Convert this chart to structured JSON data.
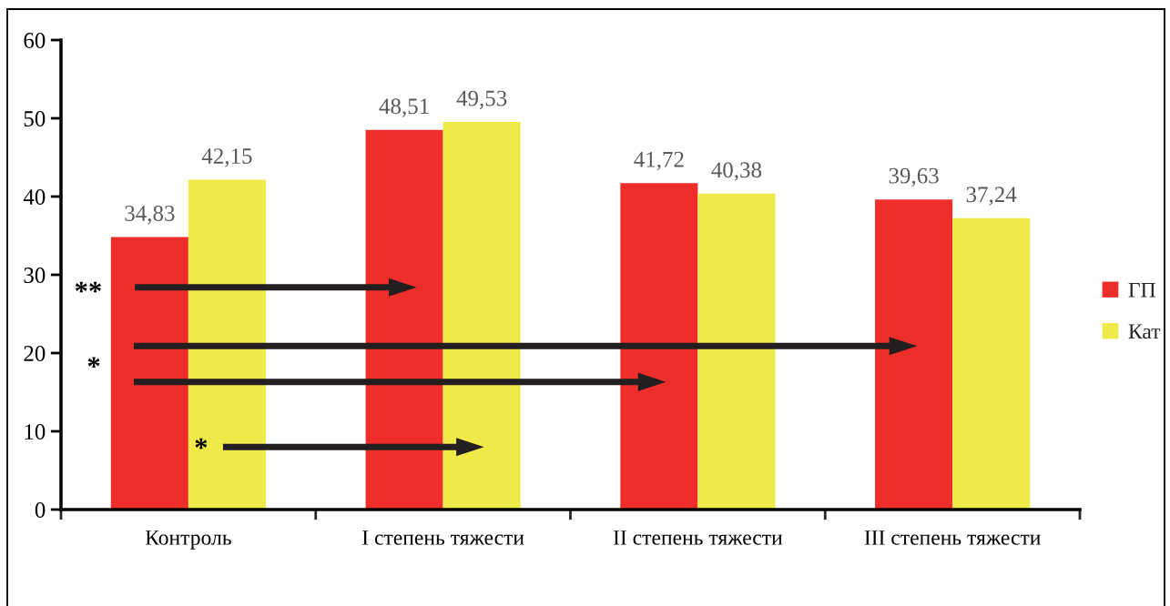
{
  "chart_data": {
    "type": "bar",
    "categories": [
      "Контроль",
      "I степень тяжести",
      "II степень тяжести",
      "III степень тяжести"
    ],
    "series": [
      {
        "name": "ГП",
        "color": "#ee2e2a",
        "values": [
          34.83,
          48.51,
          41.72,
          39.63
        ],
        "value_labels": [
          "34,83",
          "48,51",
          "41,72",
          "39,63"
        ]
      },
      {
        "name": "Кат",
        "color": "#f0e94a",
        "values": [
          42.15,
          49.53,
          40.38,
          37.24
        ],
        "value_labels": [
          "42,15",
          "49,53",
          "40,38",
          "37,24"
        ]
      }
    ],
    "ylim": [
      0,
      60
    ],
    "yticks": [
      0,
      10,
      20,
      30,
      40,
      50,
      60
    ],
    "grid": false,
    "legend": "right",
    "annotations": [
      "**",
      "*",
      "*"
    ]
  }
}
